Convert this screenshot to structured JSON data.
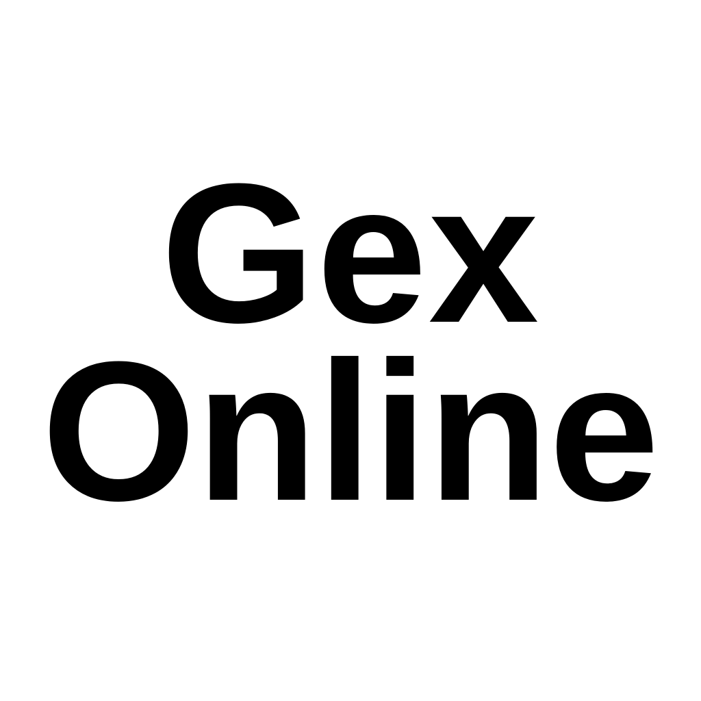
{
  "logo": {
    "line1": "Gex",
    "line2": "Online",
    "text_color": "#000000",
    "background_color": "#ffffff"
  }
}
